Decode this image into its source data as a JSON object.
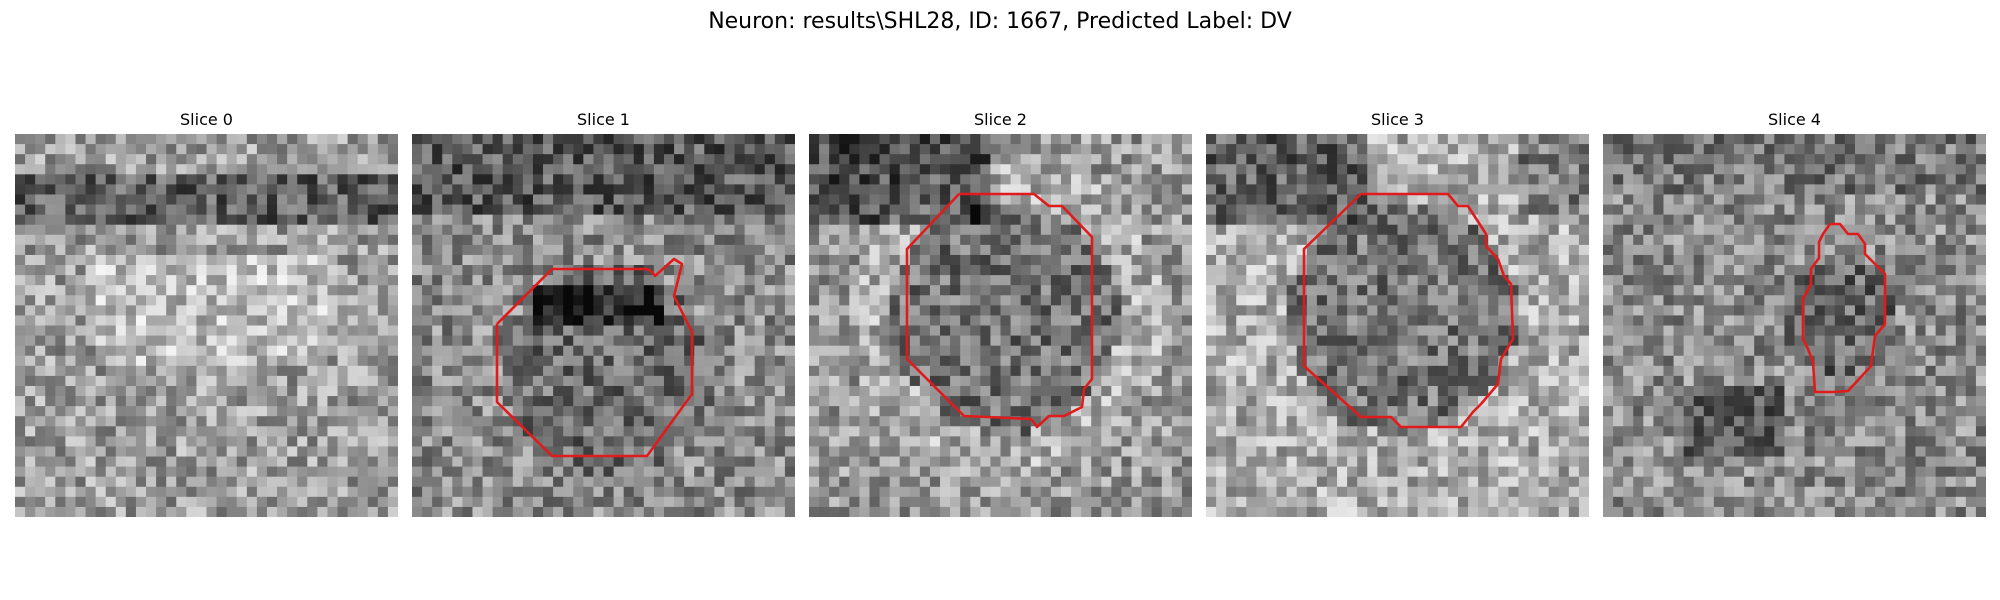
{
  "figure": {
    "title": "Neuron: results\\SHL28, ID: 1667, Predicted Label: DV"
  },
  "panels": [
    {
      "title": "Slice 0",
      "has_contour": false,
      "seed": 11
    },
    {
      "title": "Slice 1",
      "has_contour": true,
      "seed": 23
    },
    {
      "title": "Slice 2",
      "has_contour": true,
      "seed": 37
    },
    {
      "title": "Slice 3",
      "has_contour": true,
      "seed": 41
    },
    {
      "title": "Slice 4",
      "has_contour": true,
      "seed": 53
    }
  ],
  "colors": {
    "contour": "#e01b1b",
    "background": "#ffffff"
  },
  "colormap": "gray"
}
